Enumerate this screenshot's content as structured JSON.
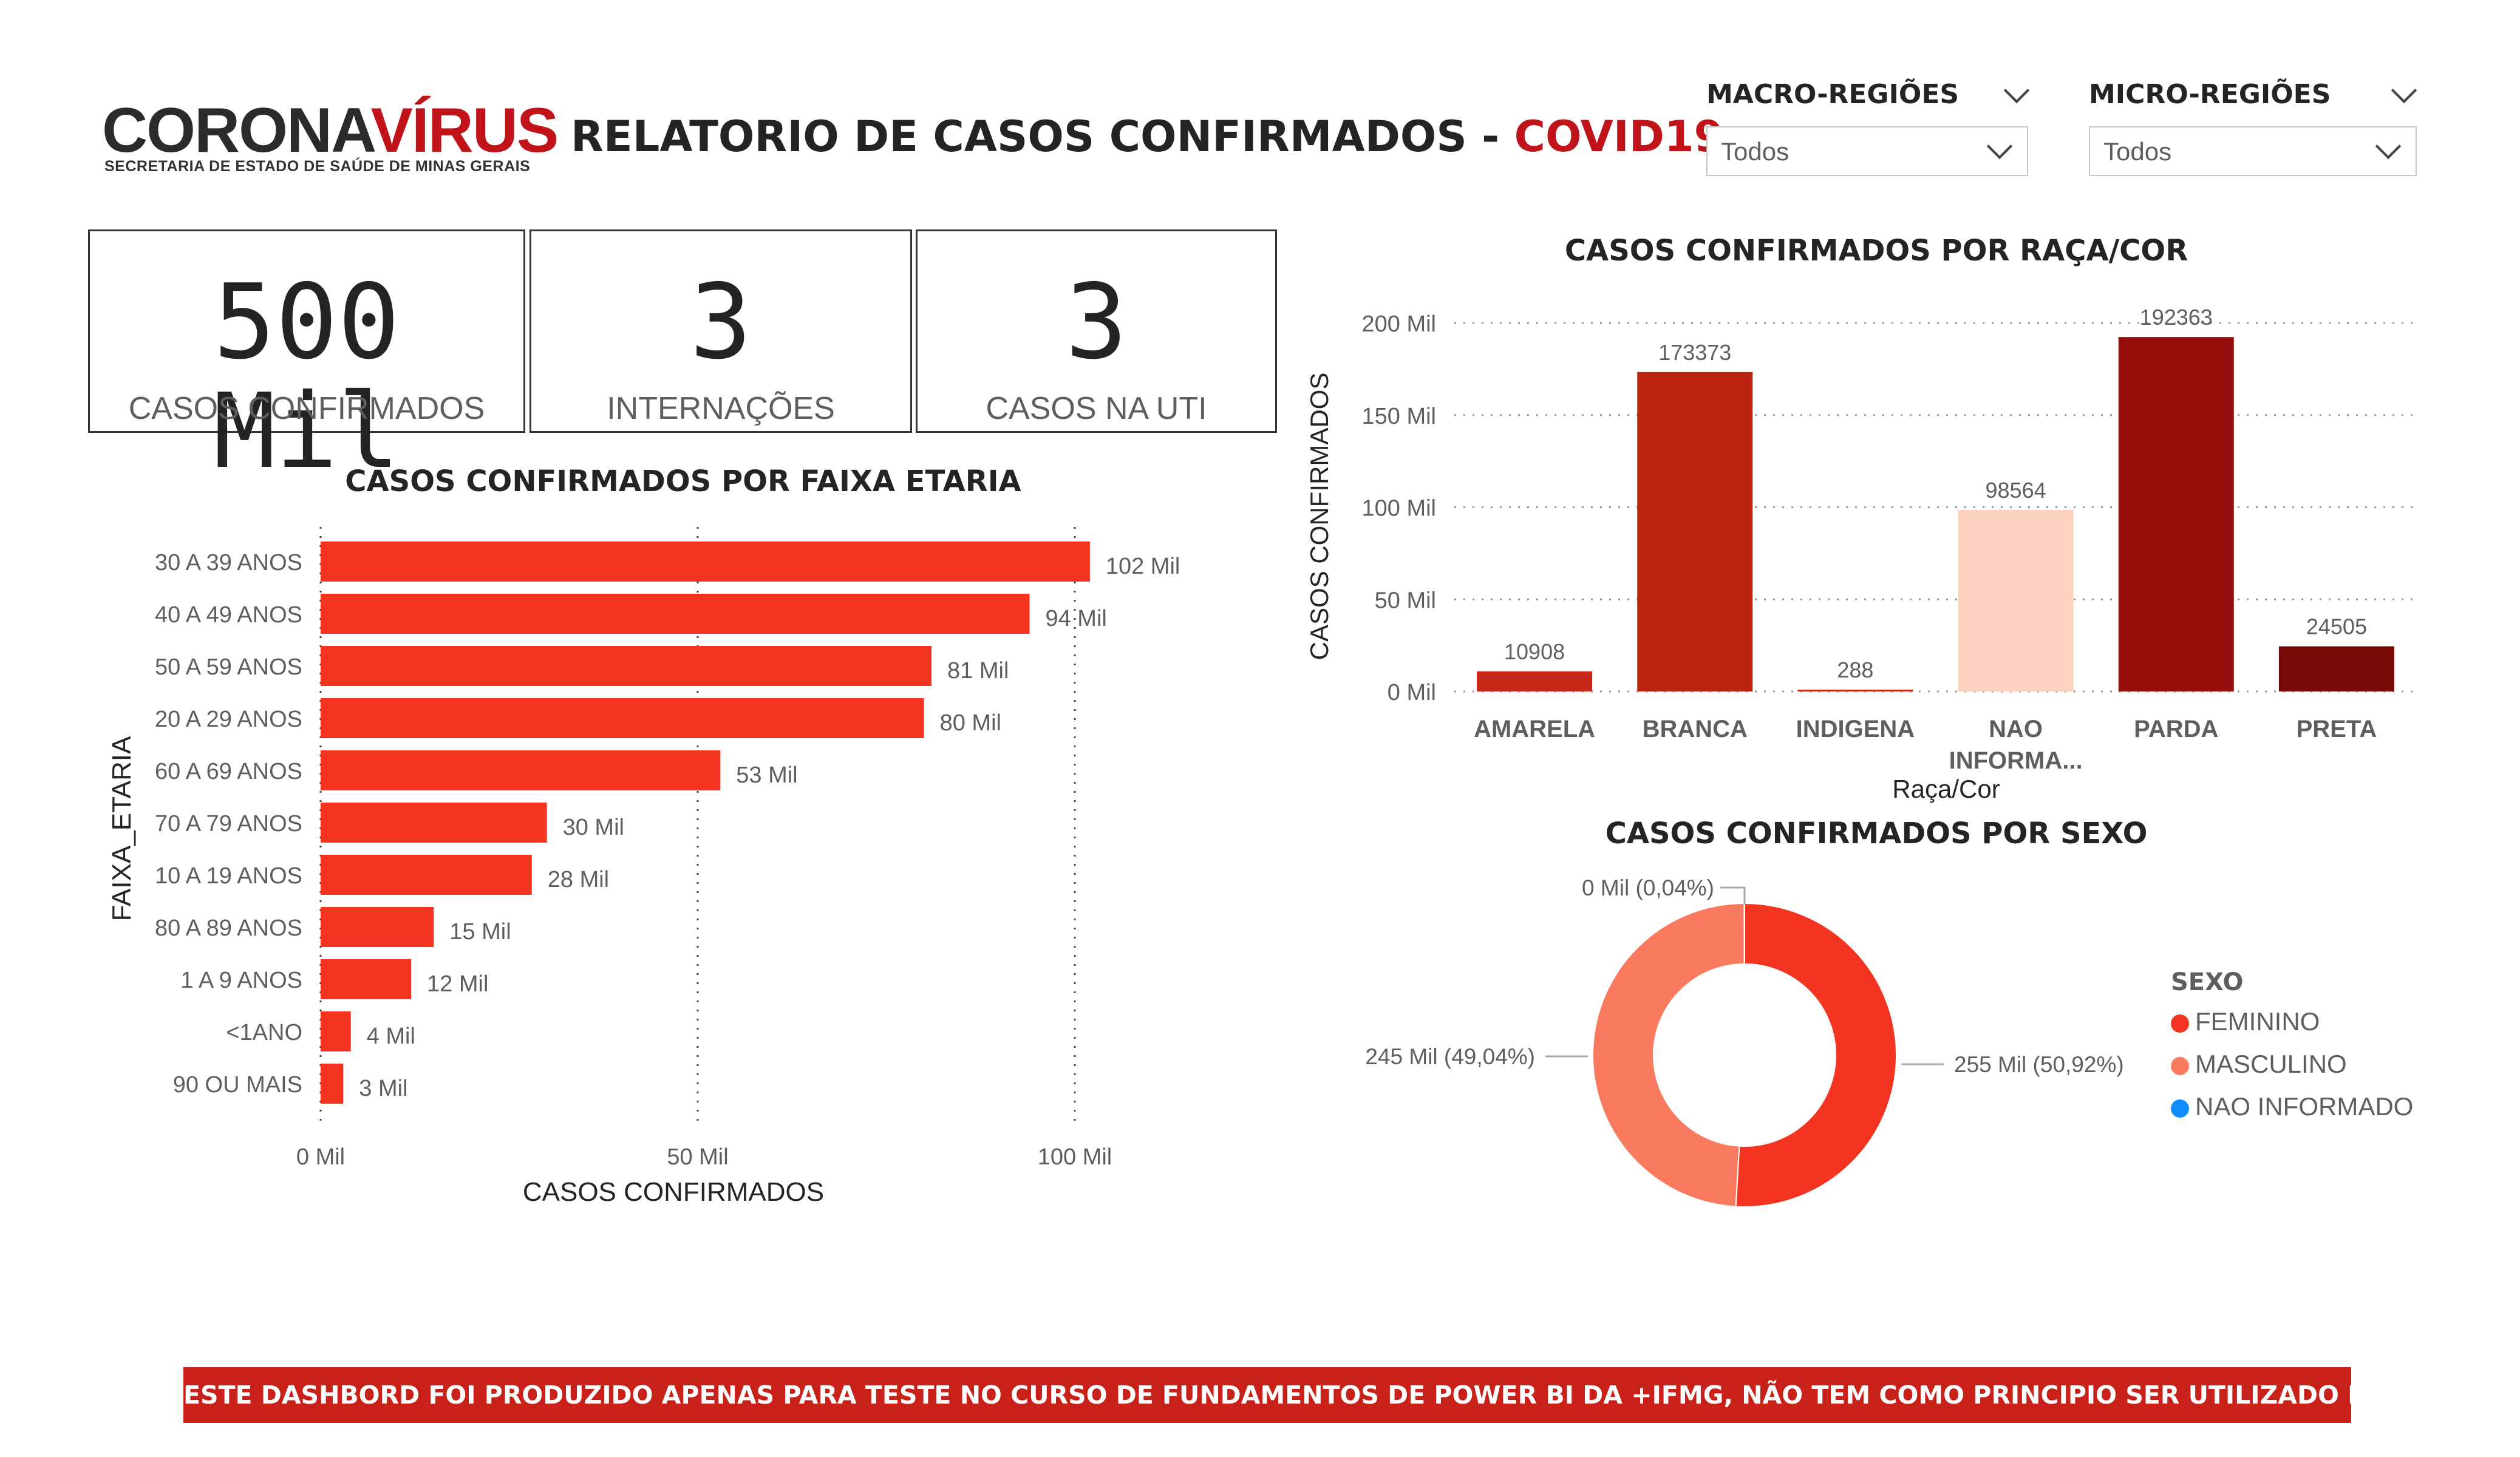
{
  "header": {
    "logo_part1": "CORONA",
    "logo_part2": "VÍRUS",
    "logo_subtitle": "SECRETARIA DE ESTADO DE SAÚDE DE MINAS GERAIS",
    "title_prefix": "RELATORIO DE CASOS CONFIRMADOS - ",
    "title_highlight": "COVID19"
  },
  "filters": {
    "macro_label": "MACRO-REGIÕES",
    "macro_value": "Todos",
    "micro_label": "MICRO-REGIÕES",
    "micro_value": "Todos"
  },
  "cards": [
    {
      "value": "500 Mil",
      "label": "CASOS CONFIRMADOS"
    },
    {
      "value": "3",
      "label": "INTERNAÇÕES"
    },
    {
      "value": "3",
      "label": "CASOS NA UTI"
    }
  ],
  "colors": {
    "accent": "#c0141a",
    "bar_age": "#f33421",
    "footer_bg": "#c8211a"
  },
  "chart_data": [
    {
      "type": "bar",
      "orientation": "horizontal",
      "title": "CASOS CONFIRMADOS POR FAIXA ETARIA",
      "xlabel": "CASOS CONFIRMADOS",
      "ylabel": "FAIXA_ETARIA",
      "categories": [
        "30 A 39 ANOS",
        "40 A 49 ANOS",
        "50 A 59 ANOS",
        "20 A 29 ANOS",
        "60 A 69 ANOS",
        "70 A 79 ANOS",
        "10 A 19 ANOS",
        "80 A 89 ANOS",
        "1 A 9 ANOS",
        "<1ANO",
        "90 OU MAIS"
      ],
      "values": [
        102000,
        94000,
        81000,
        80000,
        53000,
        30000,
        28000,
        15000,
        12000,
        4000,
        3000
      ],
      "data_labels": [
        "102 Mil",
        "94 Mil",
        "81 Mil",
        "80 Mil",
        "53 Mil",
        "30 Mil",
        "28 Mil",
        "15 Mil",
        "12 Mil",
        "4 Mil",
        "3 Mil"
      ],
      "xlim": [
        0,
        100000
      ],
      "xticks": [
        0,
        50000,
        100000
      ],
      "xtick_labels": [
        "0 Mil",
        "50 Mil",
        "100 Mil"
      ],
      "grid": "vertical dotted",
      "color": "#f33421"
    },
    {
      "type": "bar",
      "title": "CASOS CONFIRMADOS POR RAÇA/COR",
      "xlabel": "Raça/Cor",
      "ylabel": "CASOS CONFIRMADOS",
      "categories": [
        "AMARELA",
        "BRANCA",
        "INDIGENA",
        "NAO INFORMA...",
        "PARDA",
        "PRETA"
      ],
      "values": [
        10908,
        173373,
        288,
        98564,
        192363,
        24505
      ],
      "colors": [
        "#c8281a",
        "#bb2510",
        "#c42a12",
        "#fcd3c1",
        "#960f0d",
        "#7a0a06"
      ],
      "ylim": [
        0,
        200000
      ],
      "yticks": [
        0,
        50000,
        100000,
        150000,
        200000
      ],
      "ytick_labels": [
        "0 Mil",
        "50 Mil",
        "100 Mil",
        "150 Mil",
        "200 Mil"
      ],
      "grid": "horizontal dotted"
    },
    {
      "type": "pie",
      "donut": true,
      "title": "CASOS CONFIRMADOS POR SEXO",
      "legend_title": "SEXO",
      "legend_placement": "right",
      "categories": [
        "FEMININO",
        "MASCULINO",
        "NAO INFORMADO"
      ],
      "values": [
        50.92,
        49.04,
        0.04
      ],
      "data_labels": [
        "255 Mil (50,92%)",
        "245 Mil (49,04%)",
        "0 Mil (0,04%)"
      ],
      "colors": [
        "#f33421",
        "#fa7a5f",
        "#118dff"
      ]
    }
  ],
  "footer": {
    "text": "ESTE DASHBORD FOI PRODUZIDO APENAS PARA TESTE NO CURSO DE FUNDAMENTOS DE POWER BI DA +IFMG, NÃO TEM COMO PRINCIPIO SER UTILIZADO EM UM CASO REAL"
  }
}
